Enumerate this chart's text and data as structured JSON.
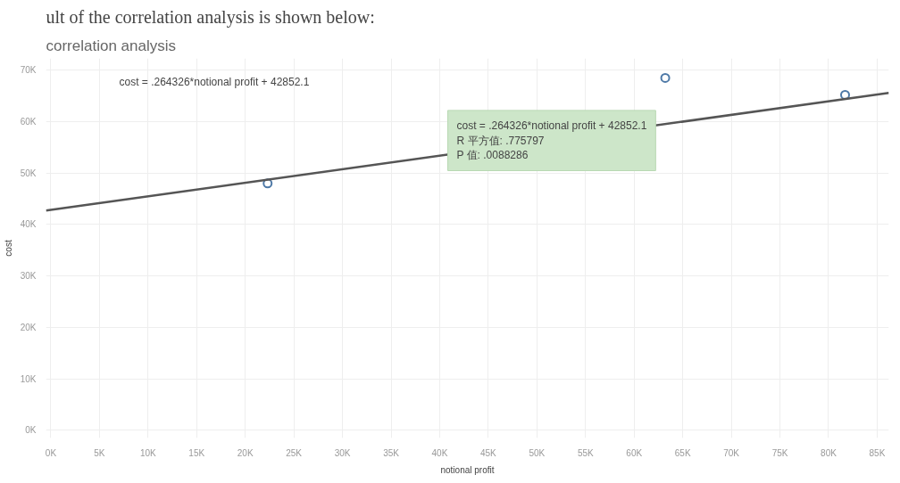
{
  "chart_data": {
    "type": "scatter",
    "title": "correlation analysis",
    "xlabel": "notional profit",
    "ylabel": "cost",
    "annotations": [
      "ult of the correlation analysis is shown below:",
      "cost = .264326*notional profit + 42852.1",
      "cost = .264326*notional profit + 42852.1\nR 平方值: .775797\nP 值: .0088286"
    ],
    "series": [
      {
        "color": "#4e79a7",
        "x": [
          22300,
          63200,
          81700
        ],
        "values": [
          48000,
          68500,
          65200
        ]
      },
      {
        "type": "line",
        "marker": "none",
        "color": "#555555",
        "x": [
          -500,
          86200
        ],
        "values": [
          42700,
          65600
        ]
      }
    ],
    "xlim": [
      -500,
      86200
    ],
    "ylim": [
      -1500,
      72300
    ],
    "xticks": [
      {
        "value": 0,
        "label": "0K"
      },
      {
        "value": 5000,
        "label": "5K"
      },
      {
        "value": 10000,
        "label": "10K"
      },
      {
        "value": 15000,
        "label": "15K"
      },
      {
        "value": 20000,
        "label": "20K"
      },
      {
        "value": 25000,
        "label": "25K"
      },
      {
        "value": 30000,
        "label": "30K"
      },
      {
        "value": 35000,
        "label": "35K"
      },
      {
        "value": 40000,
        "label": "40K"
      },
      {
        "value": 45000,
        "label": "45K"
      },
      {
        "value": 50000,
        "label": "50K"
      },
      {
        "value": 55000,
        "label": "55K"
      },
      {
        "value": 60000,
        "label": "60K"
      },
      {
        "value": 65000,
        "label": "65K"
      },
      {
        "value": 70000,
        "label": "70K"
      },
      {
        "value": 75000,
        "label": "75K"
      },
      {
        "value": 80000,
        "label": "80K"
      },
      {
        "value": 85000,
        "label": "85K"
      }
    ],
    "yticks": [
      {
        "value": 0,
        "label": "0K"
      },
      {
        "value": 10000,
        "label": "10K"
      },
      {
        "value": 20000,
        "label": "20K"
      },
      {
        "value": 30000,
        "label": "30K"
      },
      {
        "value": 40000,
        "label": "40K"
      },
      {
        "value": 50000,
        "label": "50K"
      },
      {
        "value": 60000,
        "label": "60K"
      },
      {
        "value": 70000,
        "label": "70K"
      }
    ],
    "grid": true,
    "marker": "circle"
  }
}
